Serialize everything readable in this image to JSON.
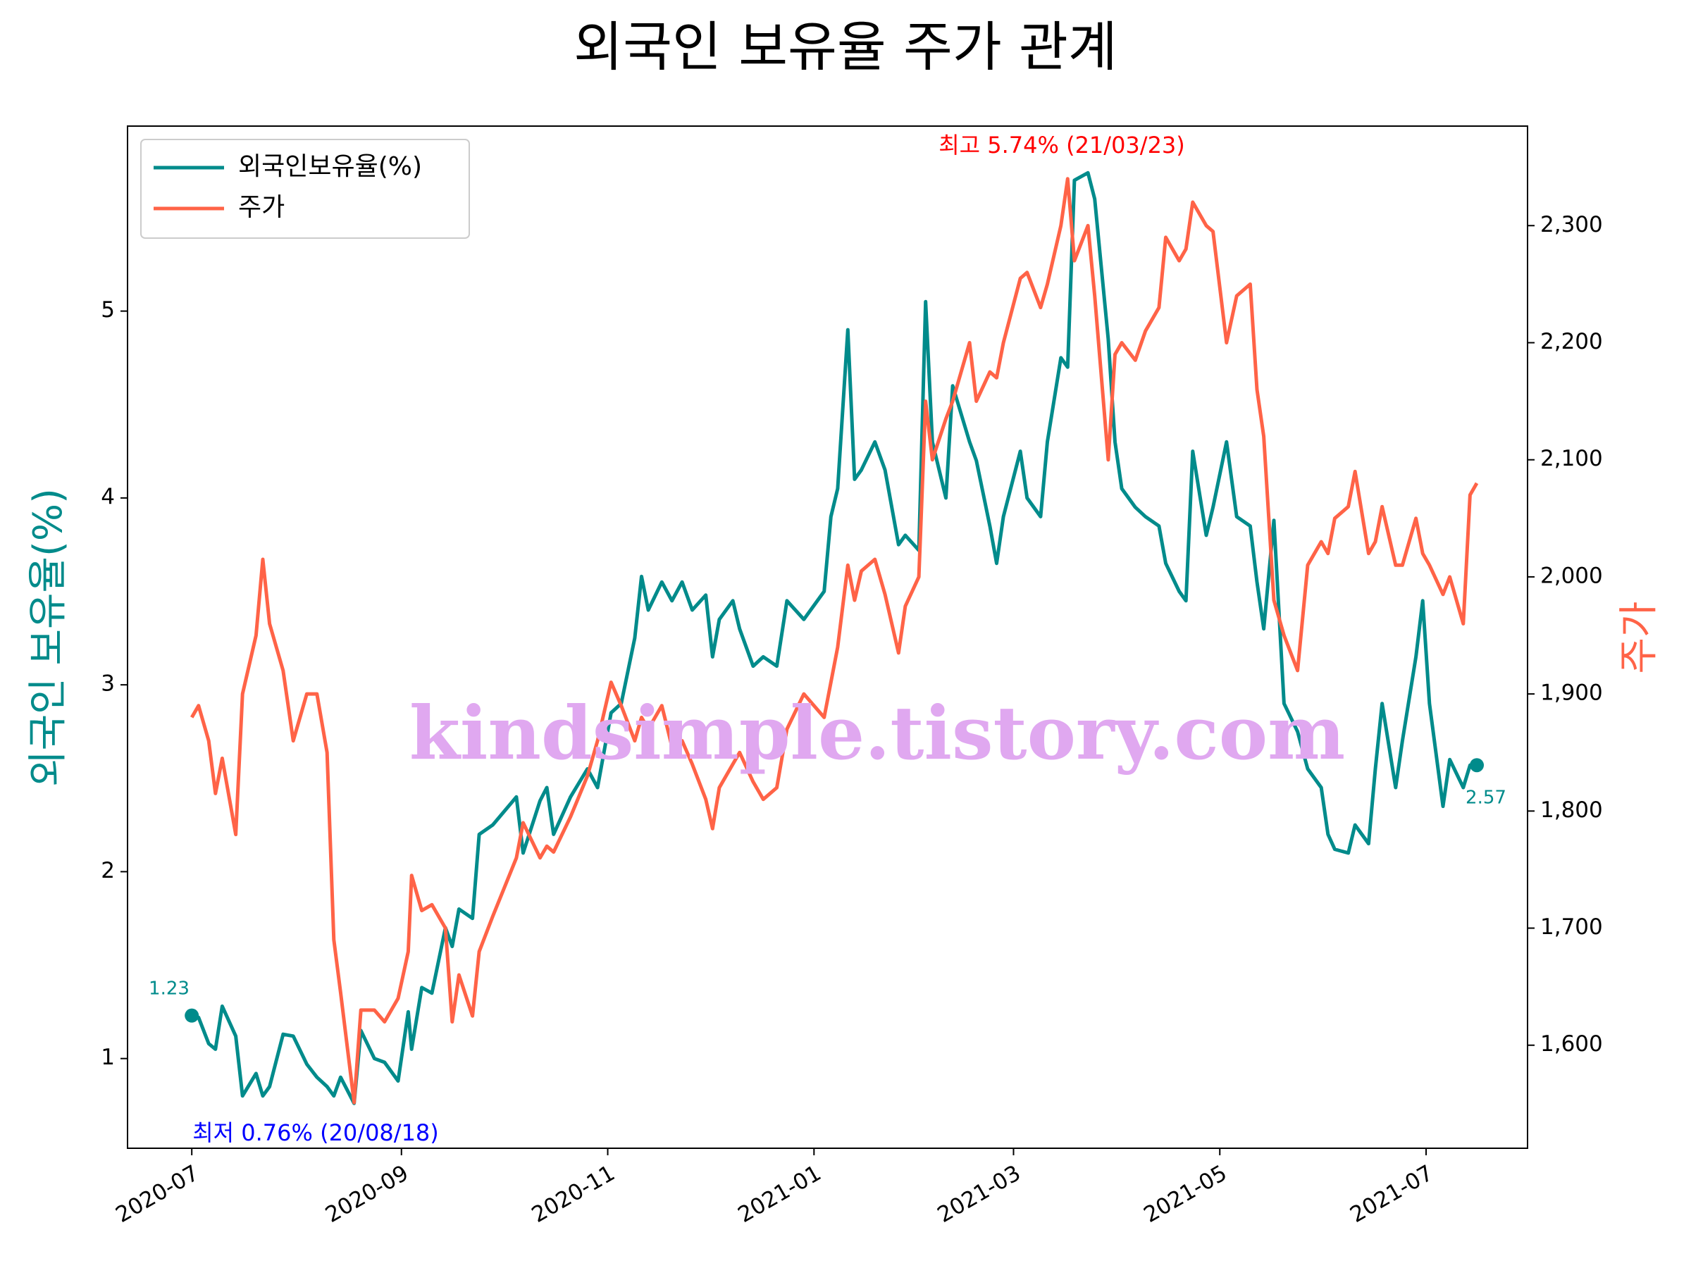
{
  "chart_data": {
    "type": "line",
    "title": "외국인 보유율 주가 관계",
    "y_label": "외국인 보유율(%)",
    "y2_label": "주가",
    "watermark": "kindsimple.tistory.com",
    "legend": "upper left",
    "annotations": [
      "1.23",
      "2.57",
      "최고 5.74% (21/03/23)",
      "최저 0.76% (20/08/18)"
    ],
    "x": [
      "2020-07-01",
      "2020-07-03",
      "2020-07-06",
      "2020-07-08",
      "2020-07-10",
      "2020-07-14",
      "2020-07-16",
      "2020-07-20",
      "2020-07-22",
      "2020-07-24",
      "2020-07-28",
      "2020-07-31",
      "2020-08-04",
      "2020-08-07",
      "2020-08-10",
      "2020-08-12",
      "2020-08-14",
      "2020-08-18",
      "2020-08-20",
      "2020-08-24",
      "2020-08-27",
      "2020-08-31",
      "2020-09-03",
      "2020-09-04",
      "2020-09-07",
      "2020-09-10",
      "2020-09-14",
      "2020-09-16",
      "2020-09-18",
      "2020-09-22",
      "2020-09-24",
      "2020-09-28",
      "2020-10-05",
      "2020-10-07",
      "2020-10-12",
      "2020-10-14",
      "2020-10-16",
      "2020-10-21",
      "2020-10-26",
      "2020-10-29",
      "2020-11-02",
      "2020-11-05",
      "2020-11-09",
      "2020-11-11",
      "2020-11-13",
      "2020-11-17",
      "2020-11-20",
      "2020-11-23",
      "2020-11-26",
      "2020-11-30",
      "2020-12-02",
      "2020-12-04",
      "2020-12-08",
      "2020-12-10",
      "2020-12-14",
      "2020-12-17",
      "2020-12-21",
      "2020-12-24",
      "2020-12-29",
      "2021-01-04",
      "2021-01-06",
      "2021-01-08",
      "2021-01-11",
      "2021-01-13",
      "2021-01-15",
      "2021-01-19",
      "2021-01-22",
      "2021-01-26",
      "2021-01-28",
      "2021-02-01",
      "2021-02-03",
      "2021-02-05",
      "2021-02-09",
      "2021-02-11",
      "2021-02-16",
      "2021-02-18",
      "2021-02-22",
      "2021-02-24",
      "2021-02-26",
      "2021-03-03",
      "2021-03-05",
      "2021-03-09",
      "2021-03-11",
      "2021-03-15",
      "2021-03-17",
      "2021-03-19",
      "2021-03-23",
      "2021-03-25",
      "2021-03-29",
      "2021-03-31",
      "2021-04-02",
      "2021-04-06",
      "2021-04-09",
      "2021-04-13",
      "2021-04-15",
      "2021-04-19",
      "2021-04-21",
      "2021-04-23",
      "2021-04-27",
      "2021-04-29",
      "2021-05-03",
      "2021-05-06",
      "2021-05-10",
      "2021-05-12",
      "2021-05-14",
      "2021-05-17",
      "2021-05-20",
      "2021-05-24",
      "2021-05-27",
      "2021-05-31",
      "2021-06-02",
      "2021-06-04",
      "2021-06-08",
      "2021-06-10",
      "2021-06-14",
      "2021-06-16",
      "2021-06-18",
      "2021-06-22",
      "2021-06-24",
      "2021-06-28",
      "2021-06-30",
      "2021-07-02",
      "2021-07-06",
      "2021-07-08",
      "2021-07-12",
      "2021-07-14",
      "2021-07-16"
    ],
    "series": [
      {
        "name": "외국인보유율(%)",
        "color": "#008b8b",
        "axis": "y",
        "values": [
          1.23,
          1.22,
          1.08,
          1.05,
          1.28,
          1.12,
          0.8,
          0.92,
          0.8,
          0.85,
          1.13,
          1.12,
          0.97,
          0.9,
          0.85,
          0.8,
          0.9,
          0.76,
          1.15,
          1.0,
          0.98,
          0.88,
          1.25,
          1.05,
          1.38,
          1.35,
          1.7,
          1.6,
          1.8,
          1.75,
          2.2,
          2.25,
          2.4,
          2.1,
          2.38,
          2.45,
          2.2,
          2.4,
          2.55,
          2.45,
          2.85,
          2.9,
          3.25,
          3.58,
          3.4,
          3.55,
          3.45,
          3.55,
          3.4,
          3.48,
          3.15,
          3.35,
          3.45,
          3.3,
          3.1,
          3.15,
          3.1,
          3.45,
          3.35,
          3.5,
          3.9,
          4.05,
          4.9,
          4.1,
          4.15,
          4.3,
          4.15,
          3.75,
          3.8,
          3.72,
          5.05,
          4.3,
          4.0,
          4.6,
          4.3,
          4.2,
          3.85,
          3.65,
          3.9,
          4.25,
          4.0,
          3.9,
          4.3,
          4.75,
          4.7,
          5.7,
          5.74,
          5.6,
          4.85,
          4.3,
          4.05,
          3.95,
          3.9,
          3.85,
          3.65,
          3.5,
          3.45,
          4.25,
          3.8,
          3.95,
          4.3,
          3.9,
          3.85,
          3.55,
          3.3,
          3.88,
          2.9,
          2.75,
          2.55,
          2.45,
          2.2,
          2.12,
          2.1,
          2.25,
          2.15,
          2.55,
          2.9,
          2.45,
          2.7,
          3.15,
          3.45,
          2.9,
          2.35,
          2.6,
          2.45,
          2.57,
          2.57
        ]
      },
      {
        "name": "주가",
        "color": "#ff6347",
        "axis": "y2",
        "values": [
          1880,
          1890,
          1860,
          1815,
          1845,
          1780,
          1900,
          1950,
          2015,
          1960,
          1920,
          1860,
          1900,
          1900,
          1850,
          1690,
          1645,
          1551,
          1630,
          1630,
          1620,
          1640,
          1680,
          1745,
          1715,
          1720,
          1700,
          1620,
          1660,
          1625,
          1680,
          1710,
          1760,
          1790,
          1760,
          1770,
          1765,
          1795,
          1830,
          1860,
          1910,
          1890,
          1860,
          1880,
          1870,
          1890,
          1855,
          1860,
          1840,
          1810,
          1785,
          1820,
          1840,
          1850,
          1825,
          1810,
          1820,
          1870,
          1900,
          1880,
          1910,
          1940,
          2010,
          1980,
          2005,
          2015,
          1985,
          1935,
          1975,
          2000,
          2150,
          2100,
          2135,
          2150,
          2200,
          2150,
          2175,
          2170,
          2200,
          2255,
          2260,
          2230,
          2250,
          2300,
          2340,
          2270,
          2300,
          2240,
          2100,
          2190,
          2200,
          2185,
          2210,
          2230,
          2290,
          2270,
          2280,
          2320,
          2300,
          2295,
          2200,
          2240,
          2250,
          2160,
          2120,
          1980,
          1950,
          1920,
          2010,
          2030,
          2020,
          2050,
          2060,
          2090,
          2020,
          2030,
          2060,
          2010,
          2010,
          2050,
          2020,
          2010,
          1985,
          2000,
          1960,
          2070,
          2080
        ]
      }
    ],
    "xlim": [
      "2020-06-12",
      "2021-07-31"
    ],
    "xticks": [
      {
        "value": "2020-07-01",
        "label": "2020-07"
      },
      {
        "value": "2020-09-01",
        "label": "2020-09"
      },
      {
        "value": "2020-11-01",
        "label": "2020-11"
      },
      {
        "value": "2021-01-01",
        "label": "2021-01"
      },
      {
        "value": "2021-03-01",
        "label": "2021-03"
      },
      {
        "value": "2021-05-01",
        "label": "2021-05"
      },
      {
        "value": "2021-07-01",
        "label": "2021-07"
      }
    ],
    "ylim": [
      0.52,
      5.99
    ],
    "yticks": [
      1,
      2,
      3,
      4,
      5
    ],
    "y2lim": [
      1512,
      2385
    ],
    "y2ticks": [
      {
        "value": 1600,
        "label": "1,600"
      },
      {
        "value": 1700,
        "label": "1,700"
      },
      {
        "value": 1800,
        "label": "1,800"
      },
      {
        "value": 1900,
        "label": "1,900"
      },
      {
        "value": 2000,
        "label": "2,000"
      },
      {
        "value": 2100,
        "label": "2,100"
      },
      {
        "value": 2200,
        "label": "2,200"
      },
      {
        "value": 2300,
        "label": "2,300"
      }
    ]
  }
}
